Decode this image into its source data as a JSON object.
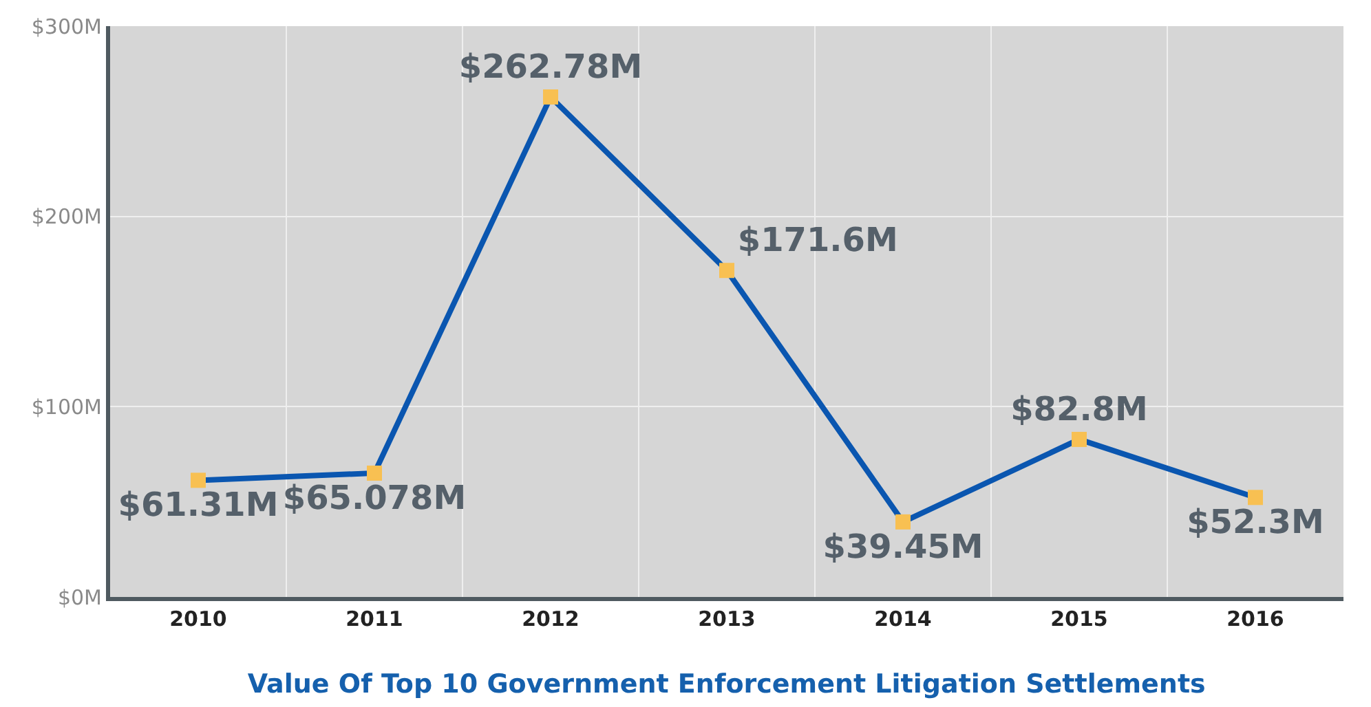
{
  "chart_data": {
    "type": "line",
    "title": "Value Of Top 10 Government Enforcement Litigation Settlements",
    "categories": [
      "2010",
      "2011",
      "2012",
      "2013",
      "2014",
      "2015",
      "2016"
    ],
    "series": [
      {
        "color": "#0a56b0",
        "values": [
          61.31,
          65.078,
          262.78,
          171.6,
          39.45,
          82.8,
          52.3
        ],
        "colors": [
          "#f8c052",
          "#f8c052",
          "#f8c052",
          "#f8c052",
          "#f8c052",
          "#f8c052",
          "#f8c052"
        ],
        "value_labels": [
          "$61.31M",
          "$65.078M",
          "$262.78M",
          "$171.6M",
          "$39.45M",
          "$82.8M",
          "$52.3M"
        ]
      }
    ],
    "marker": "square",
    "line_style": "solid",
    "grid": true,
    "legend": false,
    "ylim": [
      0,
      300
    ],
    "yticks": [
      {
        "value": 0,
        "label": "$0M"
      },
      {
        "value": 100,
        "label": "$100M"
      },
      {
        "value": 200,
        "label": "$200M"
      },
      {
        "value": 300,
        "label": "$300M"
      }
    ]
  }
}
